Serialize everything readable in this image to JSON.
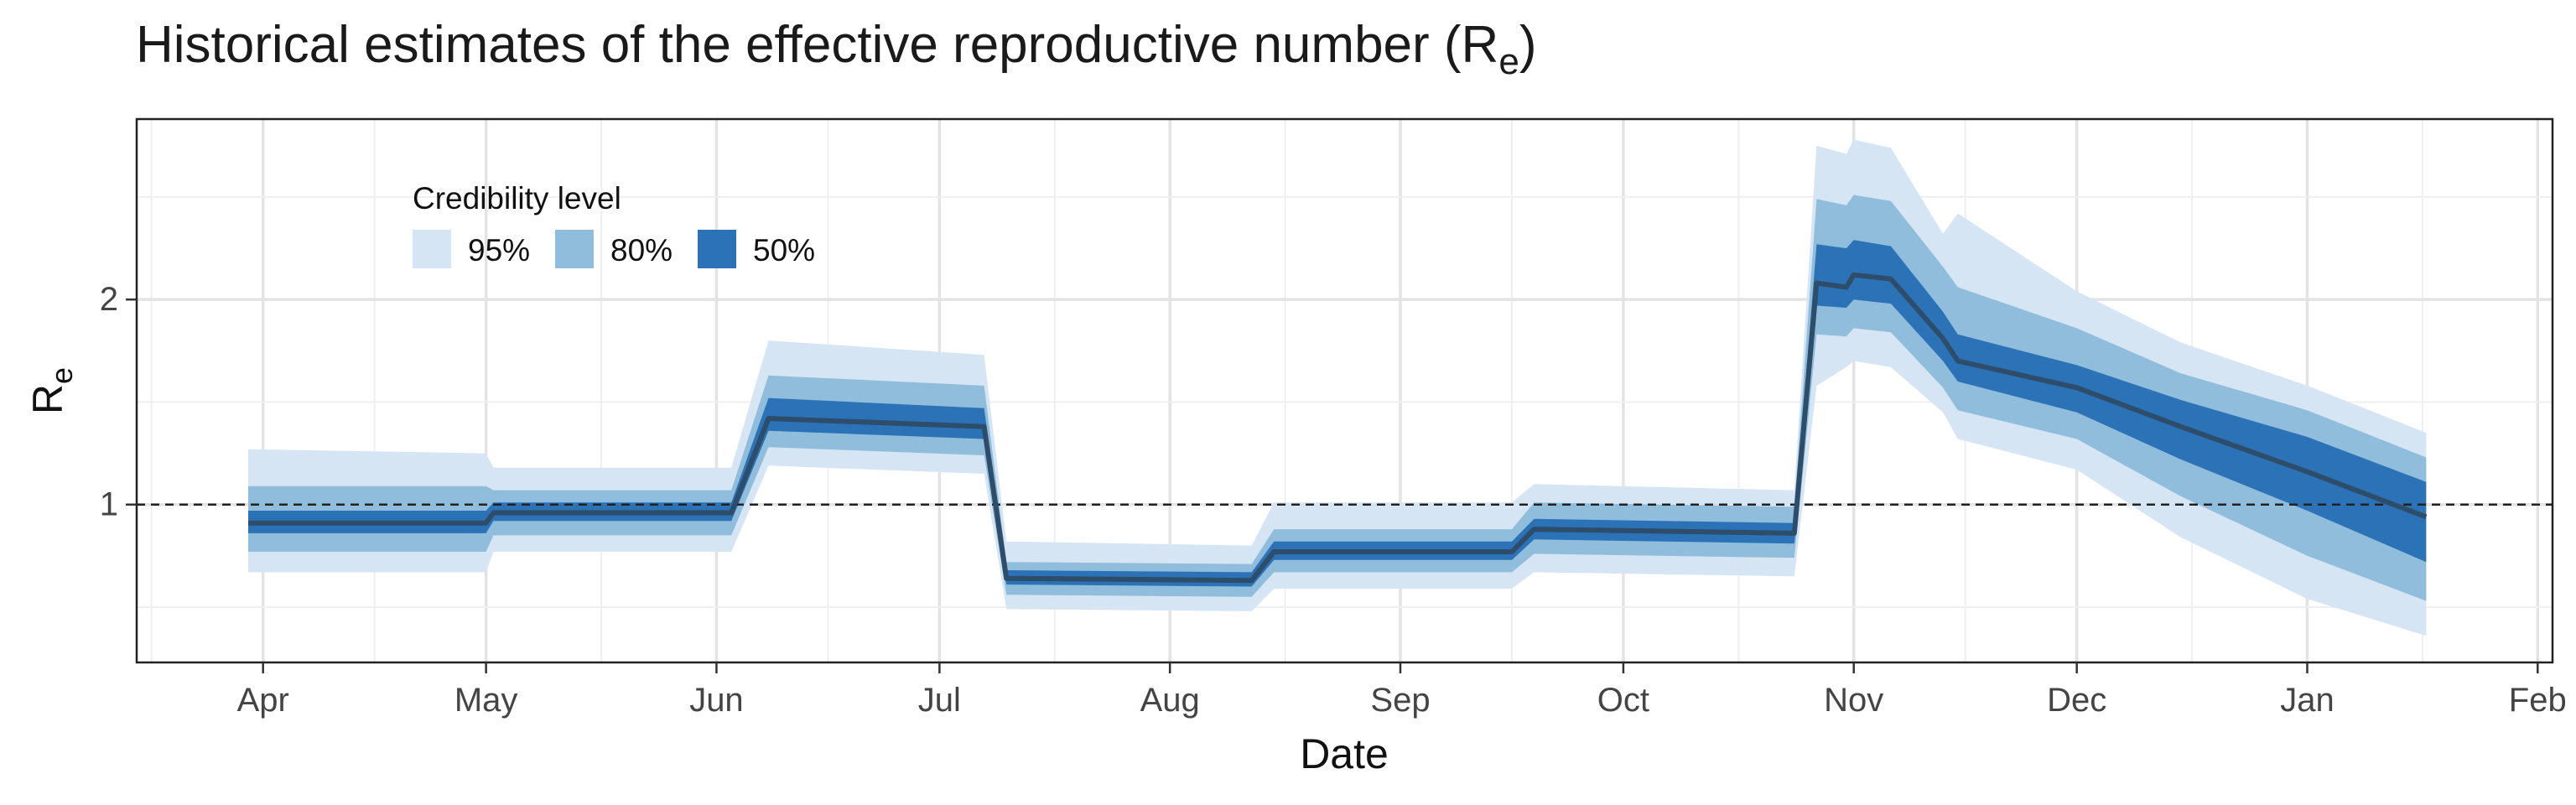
{
  "chart_data": {
    "type": "area",
    "title": "Historical estimates of the effective reproductive number (R",
    "title_subscript": "e",
    "title_suffix": ")",
    "xlabel": "Date",
    "ylabel": "R",
    "ylabel_subscript": "e",
    "x_tick_labels": [
      "Apr",
      "May",
      "Jun",
      "Jul",
      "Aug",
      "Sep",
      "Oct",
      "Nov",
      "Dec",
      "Jan",
      "Feb"
    ],
    "x_tick_dates": [
      "2020-04-01",
      "2020-05-01",
      "2020-06-01",
      "2020-07-01",
      "2020-08-01",
      "2020-09-01",
      "2020-10-01",
      "2020-11-01",
      "2020-12-01",
      "2021-01-01",
      "2021-02-01"
    ],
    "xlim": [
      "2020-03-15",
      "2021-02-03"
    ],
    "y_ticks": [
      1,
      2
    ],
    "ylim": [
      0.23,
      2.88
    ],
    "grid": true,
    "reference_line": {
      "y": 1,
      "style": "dashed"
    },
    "legend": {
      "title": "Credibility level",
      "placement": "top-left",
      "entries": [
        {
          "label": "95%",
          "color": "#d5e5f4"
        },
        {
          "label": "80%",
          "color": "#8fbddb"
        },
        {
          "label": "50%",
          "color": "#2b72b6"
        }
      ]
    },
    "median_color": "#2d4d6a",
    "x": [
      "2020-03-30",
      "2020-05-01",
      "2020-05-02",
      "2020-06-03",
      "2020-06-08",
      "2020-07-07",
      "2020-07-10",
      "2020-08-12",
      "2020-08-15",
      "2020-09-16",
      "2020-09-19",
      "2020-10-24",
      "2020-10-27",
      "2020-10-31",
      "2020-11-01",
      "2020-11-06",
      "2020-11-13",
      "2020-11-15",
      "2020-12-01",
      "2020-12-15",
      "2021-01-01",
      "2021-01-17"
    ],
    "series": [
      {
        "name": "median",
        "values": [
          0.91,
          0.91,
          0.96,
          0.96,
          1.42,
          1.38,
          0.64,
          0.63,
          0.77,
          0.77,
          0.88,
          0.86,
          2.08,
          2.06,
          2.12,
          2.1,
          1.81,
          1.7,
          1.57,
          1.38,
          1.16,
          0.94
        ]
      },
      {
        "name": "50% lower",
        "values": [
          0.86,
          0.86,
          0.92,
          0.92,
          1.36,
          1.32,
          0.61,
          0.6,
          0.73,
          0.73,
          0.83,
          0.81,
          1.97,
          1.96,
          2.0,
          1.98,
          1.7,
          1.6,
          1.45,
          1.22,
          0.97,
          0.72
        ]
      },
      {
        "name": "50% upper",
        "values": [
          0.97,
          0.97,
          1.01,
          1.01,
          1.52,
          1.47,
          0.68,
          0.67,
          0.82,
          0.82,
          0.93,
          0.91,
          2.27,
          2.25,
          2.29,
          2.26,
          1.94,
          1.83,
          1.68,
          1.51,
          1.33,
          1.11
        ]
      },
      {
        "name": "80% lower",
        "values": [
          0.77,
          0.77,
          0.85,
          0.85,
          1.28,
          1.24,
          0.56,
          0.55,
          0.67,
          0.67,
          0.76,
          0.74,
          1.83,
          1.82,
          1.86,
          1.84,
          1.57,
          1.46,
          1.32,
          1.04,
          0.75,
          0.53
        ]
      },
      {
        "name": "80% upper",
        "values": [
          1.09,
          1.09,
          1.07,
          1.07,
          1.63,
          1.58,
          0.72,
          0.71,
          0.88,
          0.88,
          1.01,
          0.99,
          2.49,
          2.46,
          2.51,
          2.48,
          2.16,
          2.06,
          1.86,
          1.64,
          1.46,
          1.23
        ]
      },
      {
        "name": "95% lower",
        "values": [
          0.67,
          0.67,
          0.77,
          0.77,
          1.19,
          1.15,
          0.49,
          0.48,
          0.59,
          0.59,
          0.67,
          0.65,
          1.58,
          1.67,
          1.7,
          1.67,
          1.45,
          1.32,
          1.17,
          0.84,
          0.54,
          0.36
        ]
      },
      {
        "name": "95% upper",
        "values": [
          1.27,
          1.25,
          1.18,
          1.18,
          1.8,
          1.73,
          0.82,
          0.8,
          1.01,
          1.01,
          1.1,
          1.07,
          2.75,
          2.71,
          2.78,
          2.74,
          2.32,
          2.42,
          2.04,
          1.79,
          1.58,
          1.35
        ]
      }
    ]
  }
}
